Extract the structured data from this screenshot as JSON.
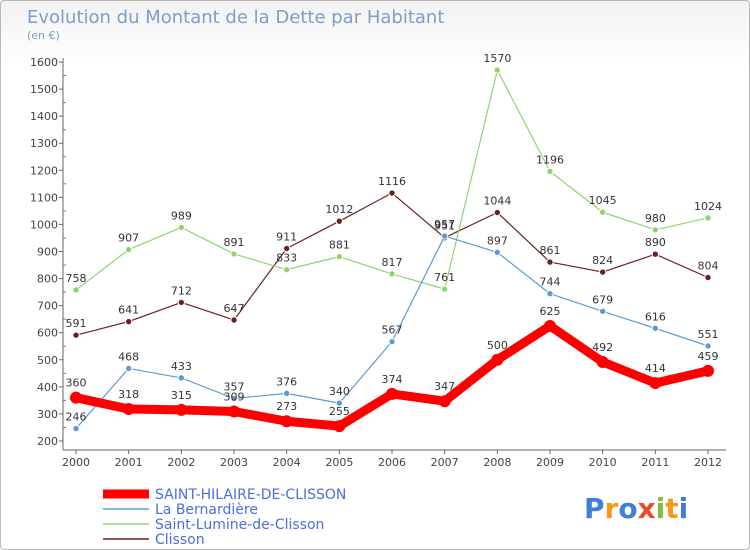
{
  "chart_data": {
    "type": "line",
    "title": "Evolution du Montant de la Dette par Habitant",
    "unit_label": "(en €)",
    "x": [
      "2000",
      "2001",
      "2002",
      "2003",
      "2004",
      "2005",
      "2006",
      "2007",
      "2008",
      "2009",
      "2010",
      "2011",
      "2012"
    ],
    "ylim": [
      200,
      1600
    ],
    "yticks": [
      200,
      300,
      400,
      500,
      600,
      700,
      800,
      900,
      1000,
      1100,
      1200,
      1300,
      1400,
      1500,
      1600
    ],
    "grid": false,
    "legend_position": "bottom-left",
    "series": [
      {
        "name": "Clisson",
        "color": "#6b1f1f",
        "values": [
          591,
          641,
          712,
          647,
          911,
          1012,
          1116,
          951,
          1044,
          861,
          824,
          890,
          804
        ]
      },
      {
        "name": "Saint-Lumine-de-Clisson",
        "color": "#8fd46f",
        "values": [
          758,
          907,
          989,
          891,
          833,
          881,
          817,
          761,
          1570,
          1196,
          1045,
          980,
          1024
        ]
      },
      {
        "name": "La Bernardière",
        "color": "#5b9bd5",
        "values": [
          246,
          468,
          433,
          357,
          376,
          340,
          567,
          957,
          897,
          744,
          679,
          616,
          551
        ]
      },
      {
        "name": "SAINT-HILAIRE-DE-CLISSON",
        "color": "#ff0000",
        "values": [
          360,
          318,
          315,
          309,
          273,
          255,
          374,
          347,
          500,
          625,
          492,
          414,
          459
        ]
      }
    ],
    "legend_order": [
      3,
      2,
      1,
      0
    ],
    "legend_colors_text": [
      "#4a6ee0",
      "#4a6ee0",
      "#4a6ee0",
      "#4a6ee0"
    ]
  },
  "logo": {
    "text": "Proxiti",
    "letters": [
      "P",
      "r",
      "o",
      "x",
      "i",
      "t",
      "i"
    ]
  }
}
